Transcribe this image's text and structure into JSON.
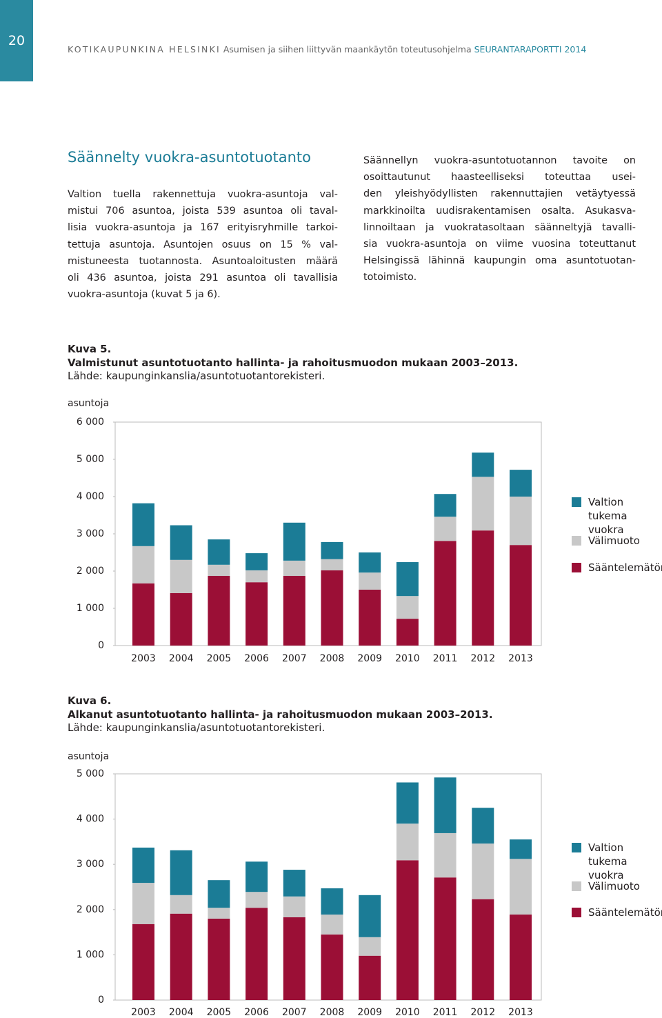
{
  "header": {
    "page_number": "20",
    "publication": "KOTIKAUPUNKINA HELSINKI",
    "subtitle": "Asumisen ja siihen liittyvän maankäytön toteutusohjelma",
    "report": "SEURANTARAPORTTI 2014"
  },
  "section_title": "Säännelty vuokra-asuntotuotanto",
  "columns": [
    [
      "Valtion tuella rakennettuja vuokra-asuntoja val-",
      "mistui 706 asuntoa, joista 539 asuntoa oli taval-",
      "lisia vuokra-asuntoja ja 167 erityisryhmille tarkoi-",
      "tettuja asuntoja. Asuntojen osuus on 15 % val-",
      "mistuneesta tuotannosta. Asuntoaloitusten määrä",
      "oli 436 asuntoa, joista 291 asuntoa oli tavallisia",
      "vuokra-asuntoja (kuvat 5 ja 6)."
    ],
    [
      "Säännellyn vuokra-asuntotuotannon tavoite on",
      "osoittautunut haasteelliseksi toteuttaa usei-",
      "den yleishyödyllisten rakennuttajien vetäytyessä",
      "markkinoilta uudisrakentamisen osalta. Asukasva-",
      "linnoiltaan ja vuokratasoltaan säänneltyjä tavalli-",
      "sia vuokra-asuntoja on viime vuosina toteuttanut",
      "Helsingissä lähinnä kaupungin oma asuntotuotan-",
      "totoimisto."
    ]
  ],
  "chart_data": [
    {
      "type": "bar",
      "stacked": true,
      "label": "Kuva 5.",
      "title": "Valmistunut asuntotuotanto hallinta- ja rahoitusmuodon mukaan 2003–2013.",
      "source": "Lähde: kaupunginkanslia/asuntotuotantorekisteri.",
      "y_label": "asuntoja",
      "categories": [
        "2003",
        "2004",
        "2005",
        "2006",
        "2007",
        "2008",
        "2009",
        "2010",
        "2011",
        "2012",
        "2013"
      ],
      "series": [
        {
          "name": "Valtion tukema vuokra",
          "color": "#1b7c96",
          "values": [
            1150,
            930,
            680,
            460,
            1020,
            460,
            540,
            910,
            610,
            650,
            720
          ]
        },
        {
          "name": "Välimuoto",
          "color": "#c8c8c8",
          "values": [
            1000,
            890,
            300,
            320,
            410,
            300,
            460,
            610,
            650,
            1440,
            1300
          ]
        },
        {
          "name": "Sääntelemätön",
          "color": "#9b0f36",
          "values": [
            1670,
            1410,
            1870,
            1700,
            1870,
            2020,
            1500,
            720,
            2810,
            3090,
            2700
          ]
        }
      ],
      "ylim": [
        0,
        6000
      ],
      "yticks": [
        0,
        {
          "value": 1000,
          "label": "1 000"
        },
        {
          "value": 2000,
          "label": "2 000"
        },
        {
          "value": 3000,
          "label": "3 000"
        },
        {
          "value": 4000,
          "label": "4 000"
        },
        {
          "value": 5000,
          "label": "5 000"
        },
        {
          "value": 6000,
          "label": "6 000"
        }
      ]
    },
    {
      "type": "bar",
      "stacked": true,
      "label": "Kuva 6.",
      "title": "Alkanut asuntotuotanto hallinta- ja rahoitusmuodon mukaan 2003–2013.",
      "source": "Lähde: kaupunginkanslia/asuntotuotantorekisteri.",
      "y_label": "asuntoja",
      "categories": [
        "2003",
        "2004",
        "2005",
        "2006",
        "2007",
        "2008",
        "2009",
        "2010",
        "2011",
        "2012",
        "2013"
      ],
      "series": [
        {
          "name": "Valtion tukema vuokra",
          "color": "#1b7c96",
          "values": [
            780,
            990,
            610,
            670,
            590,
            580,
            930,
            910,
            1230,
            790,
            430
          ]
        },
        {
          "name": "Välimuoto",
          "color": "#c8c8c8",
          "values": [
            910,
            410,
            240,
            350,
            460,
            440,
            410,
            810,
            980,
            1230,
            1230
          ]
        },
        {
          "name": "Sääntelemätön",
          "color": "#9b0f36",
          "values": [
            1680,
            1910,
            1800,
            2040,
            1830,
            1450,
            980,
            3090,
            2710,
            2230,
            1890
          ]
        }
      ],
      "ylim": [
        0,
        5000
      ],
      "yticks": [
        0,
        {
          "value": 1000,
          "label": "1 000"
        },
        {
          "value": 2000,
          "label": "2 000"
        },
        {
          "value": 3000,
          "label": "3 000"
        },
        {
          "value": 4000,
          "label": "4 000"
        },
        {
          "value": 5000,
          "label": "5 000"
        }
      ]
    }
  ]
}
